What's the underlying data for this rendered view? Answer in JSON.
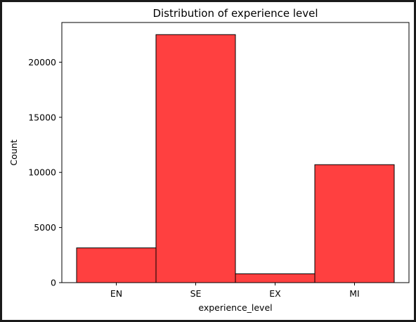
{
  "chart_data": {
    "type": "bar",
    "title": "Distribution of experience level",
    "xlabel": "experience_level",
    "ylabel": "Count",
    "categories": [
      "EN",
      "SE",
      "EX",
      "MI"
    ],
    "values": [
      3150,
      22500,
      800,
      10700
    ],
    "ylim": [
      0,
      23600
    ],
    "yticks": [
      0,
      5000,
      10000,
      15000,
      20000
    ],
    "ytick_labels": [
      "0",
      "5000",
      "10000",
      "15000",
      "20000"
    ],
    "grid": false,
    "bar_color": "#ff4040",
    "edge_color": "#000000"
  }
}
